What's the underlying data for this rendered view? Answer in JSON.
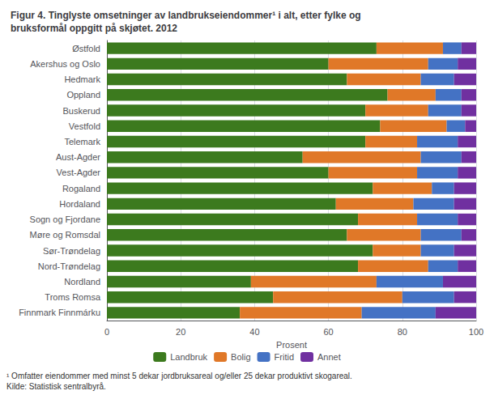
{
  "chart_data": {
    "type": "bar",
    "orientation": "horizontal",
    "stacked": true,
    "title": "Figur 4. Tinglyste omsetninger av landbrukseiendommer¹ i alt, etter fylke og\nbruksformål oppgitt på skjøtet. 2012",
    "xlabel": "Prosent",
    "annotations": [
      "¹ Omfatter eiendommer med minst 5 dekar jordbruksareal og/eller 25 dekar produktivt skogareal.\nKilde: Statistisk sentralbyrå."
    ],
    "categories": [
      "Østfold",
      "Akershus og Oslo",
      "Hedmark",
      "Oppland",
      "Buskerud",
      "Vestfold",
      "Telemark",
      "Aust-Agder",
      "Vest-Agder",
      "Rogaland",
      "Hordaland",
      "Sogn og Fjordane",
      "Møre og Romsdal",
      "Sør-Trøndelag",
      "Nord-Trøndelag",
      "Nordland",
      "Troms Romsa",
      "Finnmark Finnmárku"
    ],
    "series": [
      {
        "name": "Landbruk",
        "color": "#3c7a1e",
        "values": [
          73,
          60,
          65,
          76,
          70,
          74,
          70,
          53,
          60,
          72,
          62,
          68,
          65,
          72,
          68,
          39,
          45,
          36
        ]
      },
      {
        "name": "Bolig",
        "color": "#e07828",
        "values": [
          18,
          27,
          20,
          13,
          17,
          18,
          14,
          32,
          24,
          16,
          21,
          16,
          20,
          13,
          19,
          34,
          35,
          33
        ]
      },
      {
        "name": "Fritid",
        "color": "#4472c4",
        "values": [
          5,
          8,
          9,
          7,
          9,
          5,
          11,
          11,
          11,
          6,
          11,
          11,
          11,
          9,
          8,
          18,
          14,
          20
        ]
      },
      {
        "name": "Annet",
        "color": "#7030a0",
        "values": [
          4,
          5,
          6,
          4,
          4,
          3,
          5,
          4,
          5,
          6,
          6,
          5,
          4,
          6,
          5,
          9,
          6,
          11
        ]
      }
    ],
    "xlim": [
      0,
      100
    ],
    "xticks": [
      0,
      20,
      40,
      60,
      80,
      100
    ],
    "grid": true,
    "legend": "bottom"
  }
}
